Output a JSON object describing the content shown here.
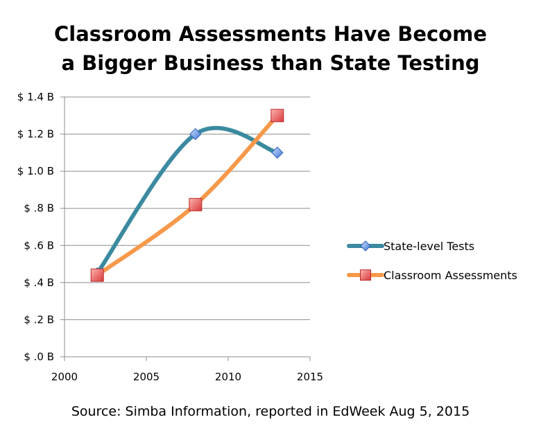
{
  "title": {
    "line1": "Classroom Assessments Have Become",
    "line2": "a Bigger Business than State Testing"
  },
  "source": "Source: Simba Information, reported in EdWeek Aug 5, 2015",
  "chart_data": {
    "type": "line",
    "title": "Classroom Assessments Have Become a Bigger Business than State Testing",
    "xlim": [
      2000,
      2015
    ],
    "ylim": [
      0,
      1.4
    ],
    "x_ticks": [
      2000,
      2005,
      2010,
      2015
    ],
    "x_tick_labels": [
      "2000",
      "2005",
      "2010",
      "2015"
    ],
    "y_ticks": [
      0,
      0.2,
      0.4,
      0.6,
      0.8,
      1.0,
      1.2,
      1.4
    ],
    "y_tick_labels": [
      "$ .0 B",
      "$ .2 B",
      "$ .4 B",
      "$ .6 B",
      "$ .8 B",
      "$ 1.0 B",
      "$ 1.2 B",
      "$ 1.4 B"
    ],
    "grid": "horizontal",
    "legend_position": "right",
    "series": [
      {
        "name": "State-level Tests",
        "x": [
          2002,
          2008,
          2013
        ],
        "y": [
          0.45,
          1.2,
          1.1
        ],
        "color": "#3b8aa0",
        "marker": "diamond",
        "marker_color": "#5b8ee0"
      },
      {
        "name": "Classroom Assessments",
        "x": [
          2002,
          2008,
          2013
        ],
        "y": [
          0.44,
          0.82,
          1.3
        ],
        "color": "#f7994a",
        "marker": "square",
        "marker_color": "#e8474a"
      }
    ]
  }
}
